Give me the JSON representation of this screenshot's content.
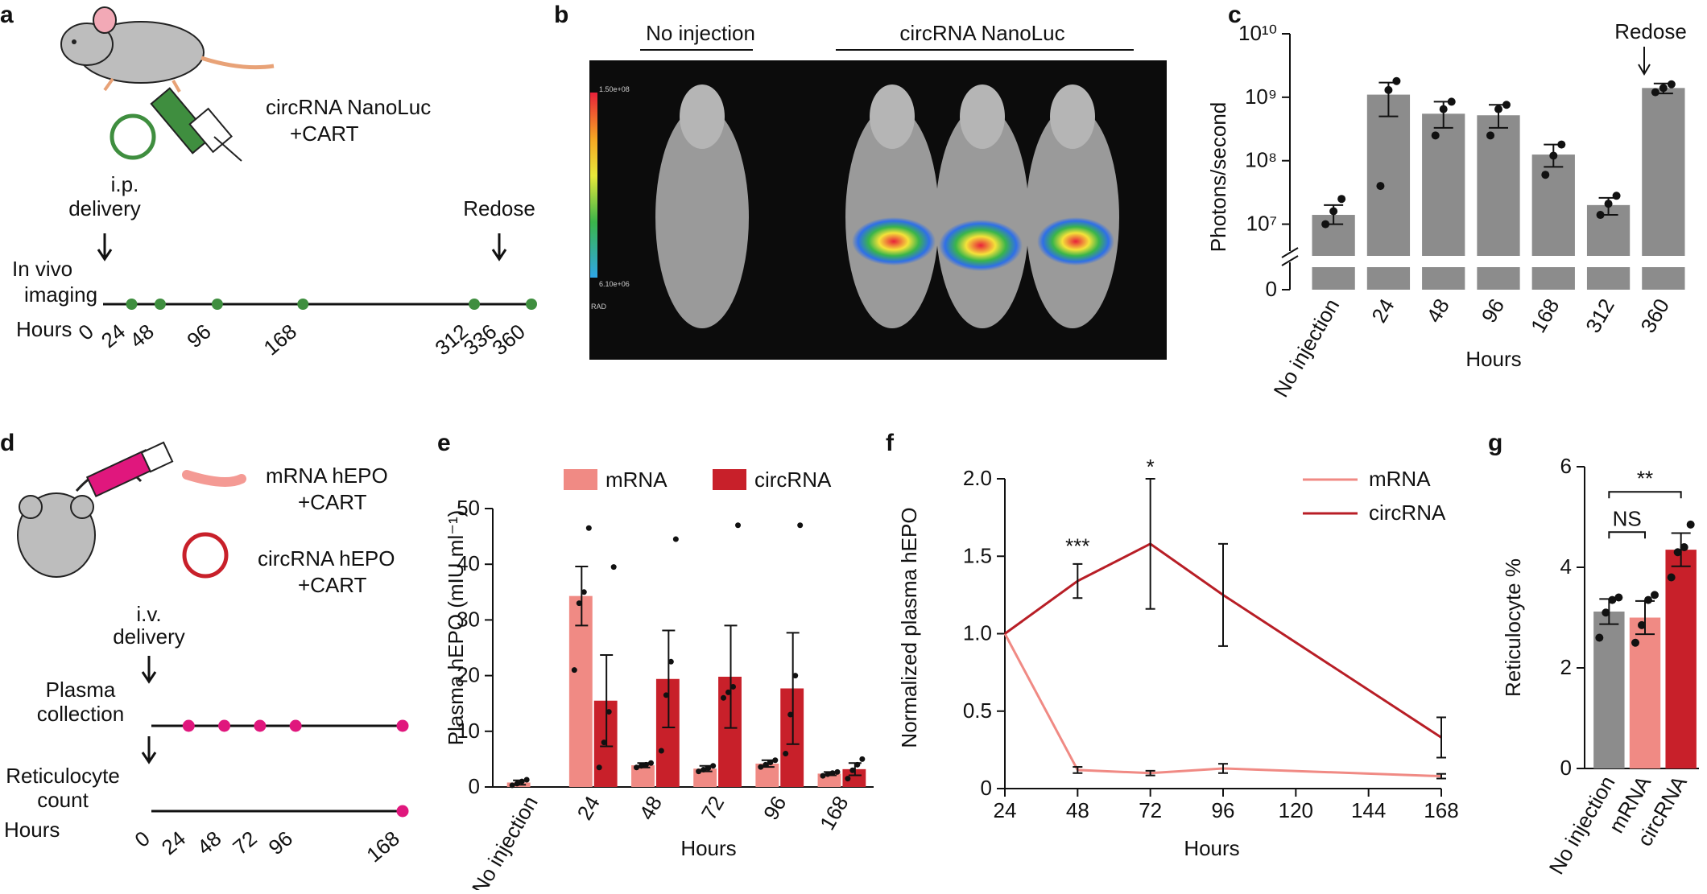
{
  "panels": {
    "a": {
      "letter": "a",
      "construct": [
        "circRNA NanoLuc",
        "+CART"
      ],
      "delivery": [
        "i.p.",
        "delivery"
      ],
      "redose": "Redose",
      "imaging": [
        "In vivo",
        "imaging"
      ],
      "hours_label": "Hours",
      "timepoints": [
        "0",
        "24",
        "48",
        "96",
        "168",
        "312",
        "336",
        "360"
      ],
      "dots": [
        24,
        48,
        96,
        168,
        312,
        360
      ]
    },
    "b": {
      "letter": "b",
      "no_injection": "No injection",
      "circ": "circRNA NanoLuc",
      "scale_top": "1.50e+08",
      "scale_bottom": "6.10e+06",
      "scale_unit": "RAD"
    },
    "d": {
      "letter": "d",
      "mrna": [
        "mRNA hEPO",
        "+CART"
      ],
      "circ": [
        "circRNA hEPO",
        "+CART"
      ],
      "delivery": [
        "i.v.",
        "delivery"
      ],
      "plasma": [
        "Plasma",
        "collection"
      ],
      "retic": [
        "Reticulocyte",
        "count"
      ],
      "hours_label": "Hours",
      "timepoints": [
        "0",
        "24",
        "48",
        "72",
        "96",
        "168"
      ]
    }
  },
  "chart_data": [
    {
      "id": "c",
      "letter": "c",
      "type": "bar",
      "title": "",
      "ylabel": "Photons/second",
      "xlabel": "Hours",
      "yscale": "log",
      "ylim": [
        1000000,
        10000000000
      ],
      "yticks": [
        "0",
        "10⁷",
        "10⁸",
        "10⁹",
        "10¹⁰"
      ],
      "categories": [
        "No injection",
        "24",
        "48",
        "96",
        "168",
        "312",
        "360"
      ],
      "values": [
        14000000,
        1100000000,
        550000000,
        520000000,
        125000000,
        20000000,
        1400000000
      ],
      "err": [
        [
          10000000,
          20000000
        ],
        [
          500000000,
          1700000000
        ],
        [
          330000000,
          850000000
        ],
        [
          330000000,
          760000000
        ],
        [
          80000000,
          180000000
        ],
        [
          14000000,
          26000000
        ],
        [
          1150000000,
          1650000000
        ]
      ],
      "points": [
        [
          10000000,
          16000000,
          25000000
        ],
        [
          40000000,
          1300000000,
          1800000000
        ],
        [
          250000000,
          650000000,
          850000000
        ],
        [
          250000000,
          650000000,
          760000000
        ],
        [
          60000000,
          120000000,
          180000000
        ],
        [
          14000000,
          21000000,
          28000000
        ],
        [
          1200000000,
          1400000000,
          1600000000
        ]
      ],
      "annotation": "Redose",
      "color": "#8c8c8c"
    },
    {
      "id": "e",
      "letter": "e",
      "type": "bar",
      "title": "",
      "ylabel": "Plasma hEPO (mIU ml⁻¹)",
      "xlabel": "Hours",
      "ylim": [
        0,
        50
      ],
      "yticks": [
        "0",
        "10",
        "20",
        "30",
        "40",
        "50"
      ],
      "categories": [
        "No injection",
        "24",
        "48",
        "72",
        "96",
        "168"
      ],
      "series": [
        {
          "name": "mRNA",
          "color": "#f08a84",
          "values": [
            0.8,
            34.3,
            3.9,
            3.3,
            4.2,
            2.4
          ],
          "err": [
            0.4,
            5.3,
            0.4,
            0.5,
            0.6,
            0.3
          ]
        },
        {
          "name": "circRNA",
          "color": "#c8202a",
          "values": [
            null,
            15.5,
            19.4,
            19.8,
            17.7,
            3.2
          ],
          "err": [
            null,
            8.2,
            8.7,
            9.2,
            10.0,
            1.1
          ]
        }
      ],
      "points_mrna": [
        [
          0.3,
          0.6,
          1.0,
          1.3
        ],
        [
          21,
          33,
          35,
          46.5
        ],
        [
          3.5,
          3.8,
          4.0,
          4.3
        ],
        [
          2.8,
          3.1,
          3.4,
          3.8
        ],
        [
          3.6,
          4.0,
          4.4,
          4.8
        ],
        [
          2.0,
          2.3,
          2.5,
          2.7
        ]
      ],
      "points_circ": [
        [],
        [
          3.5,
          8,
          13.5,
          39.5
        ],
        [
          6.5,
          16.5,
          22.5,
          44.5
        ],
        [
          16,
          17,
          18,
          47
        ],
        [
          6,
          13,
          20,
          47
        ],
        [
          1.5,
          3,
          4,
          5
        ]
      ]
    },
    {
      "id": "f",
      "letter": "f",
      "type": "line",
      "title": "",
      "ylabel": "Normalized plasma hEPO",
      "xlabel": "Hours",
      "xlim": [
        24,
        168
      ],
      "ylim": [
        0,
        2.0
      ],
      "xticks": [
        "24",
        "48",
        "72",
        "96",
        "120",
        "144",
        "168"
      ],
      "yticks": [
        "0",
        "0.5",
        "1.0",
        "1.5",
        "2.0"
      ],
      "series": [
        {
          "name": "mRNA",
          "color": "#f08a84",
          "x": [
            24,
            48,
            72,
            96,
            168
          ],
          "y": [
            1.0,
            0.12,
            0.1,
            0.13,
            0.08
          ],
          "err": [
            0,
            0.02,
            0.015,
            0.03,
            0.015
          ]
        },
        {
          "name": "circRNA",
          "color": "#b81e26",
          "x": [
            24,
            48,
            72,
            96,
            168
          ],
          "y": [
            1.0,
            1.34,
            1.58,
            1.25,
            0.33
          ],
          "err": [
            0,
            0.11,
            0.42,
            0.33,
            0.13
          ]
        }
      ],
      "annotations": [
        {
          "x": 48,
          "text": "***"
        },
        {
          "x": 72,
          "text": "*"
        }
      ]
    },
    {
      "id": "g",
      "letter": "g",
      "type": "bar",
      "title": "",
      "ylabel": "Reticulocyte %",
      "xlabel": "",
      "ylim": [
        0,
        6
      ],
      "yticks": [
        "0",
        "2",
        "4",
        "6"
      ],
      "categories": [
        "No injection",
        "mRNA",
        "circRNA"
      ],
      "values": [
        3.12,
        3.0,
        4.35
      ],
      "err": [
        0.25,
        0.33,
        0.33
      ],
      "colors": [
        "#8c8c8c",
        "#f08a84",
        "#c8202a"
      ],
      "points": [
        [
          2.6,
          3.1,
          3.35,
          3.4
        ],
        [
          2.5,
          2.85,
          3.35,
          3.45
        ],
        [
          3.8,
          4.3,
          4.4,
          4.85
        ]
      ],
      "significance": [
        {
          "from": 0,
          "to": 1,
          "text": "NS"
        },
        {
          "from": 0,
          "to": 2,
          "text": "**"
        }
      ]
    }
  ]
}
